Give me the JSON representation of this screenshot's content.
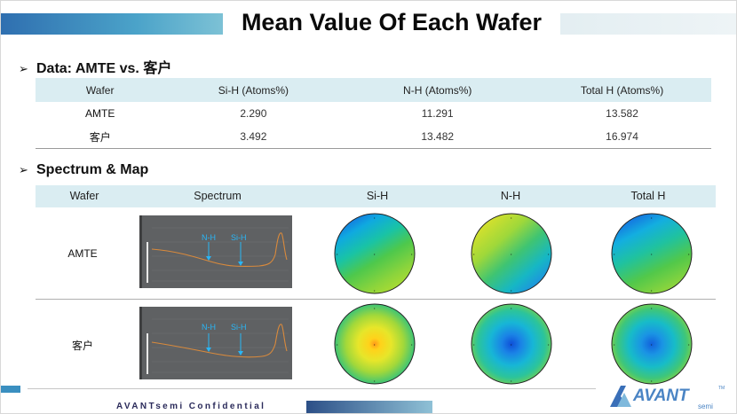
{
  "title": "Mean Value Of Each Wafer",
  "section1": {
    "heading": "Data: AMTE vs. 客户"
  },
  "table1": {
    "headers": [
      "Wafer",
      "Si-H (Atoms%)",
      "N-H (Atoms%)",
      "Total H (Atoms%)"
    ],
    "rows": [
      [
        "AMTE",
        "2.290",
        "11.291",
        "13.582"
      ],
      [
        "客户",
        "3.492",
        "13.482",
        "16.974"
      ]
    ]
  },
  "section2": {
    "heading": "Spectrum & Map"
  },
  "table2": {
    "headers": [
      "Wafer",
      "Spectrum",
      "Si-H",
      "N-H",
      "Total H"
    ],
    "rows": [
      {
        "label": "AMTE",
        "nh_label": "N-H",
        "sih_label": "Si-H"
      },
      {
        "label": "客户",
        "nh_label": "N-H",
        "sih_label": "Si-H"
      }
    ]
  },
  "footer": {
    "confidential": "AVANTsemi Confidential",
    "logo_text": "AVANT",
    "logo_sub": "semi",
    "logo_tm": "TM"
  },
  "colors": {
    "header_fill": "#daedf2",
    "accent": "#3a8fc0",
    "spectrum_bg": "#5f6163",
    "spectrum_line": "#d98a3c",
    "marker": "#29b6f6"
  }
}
